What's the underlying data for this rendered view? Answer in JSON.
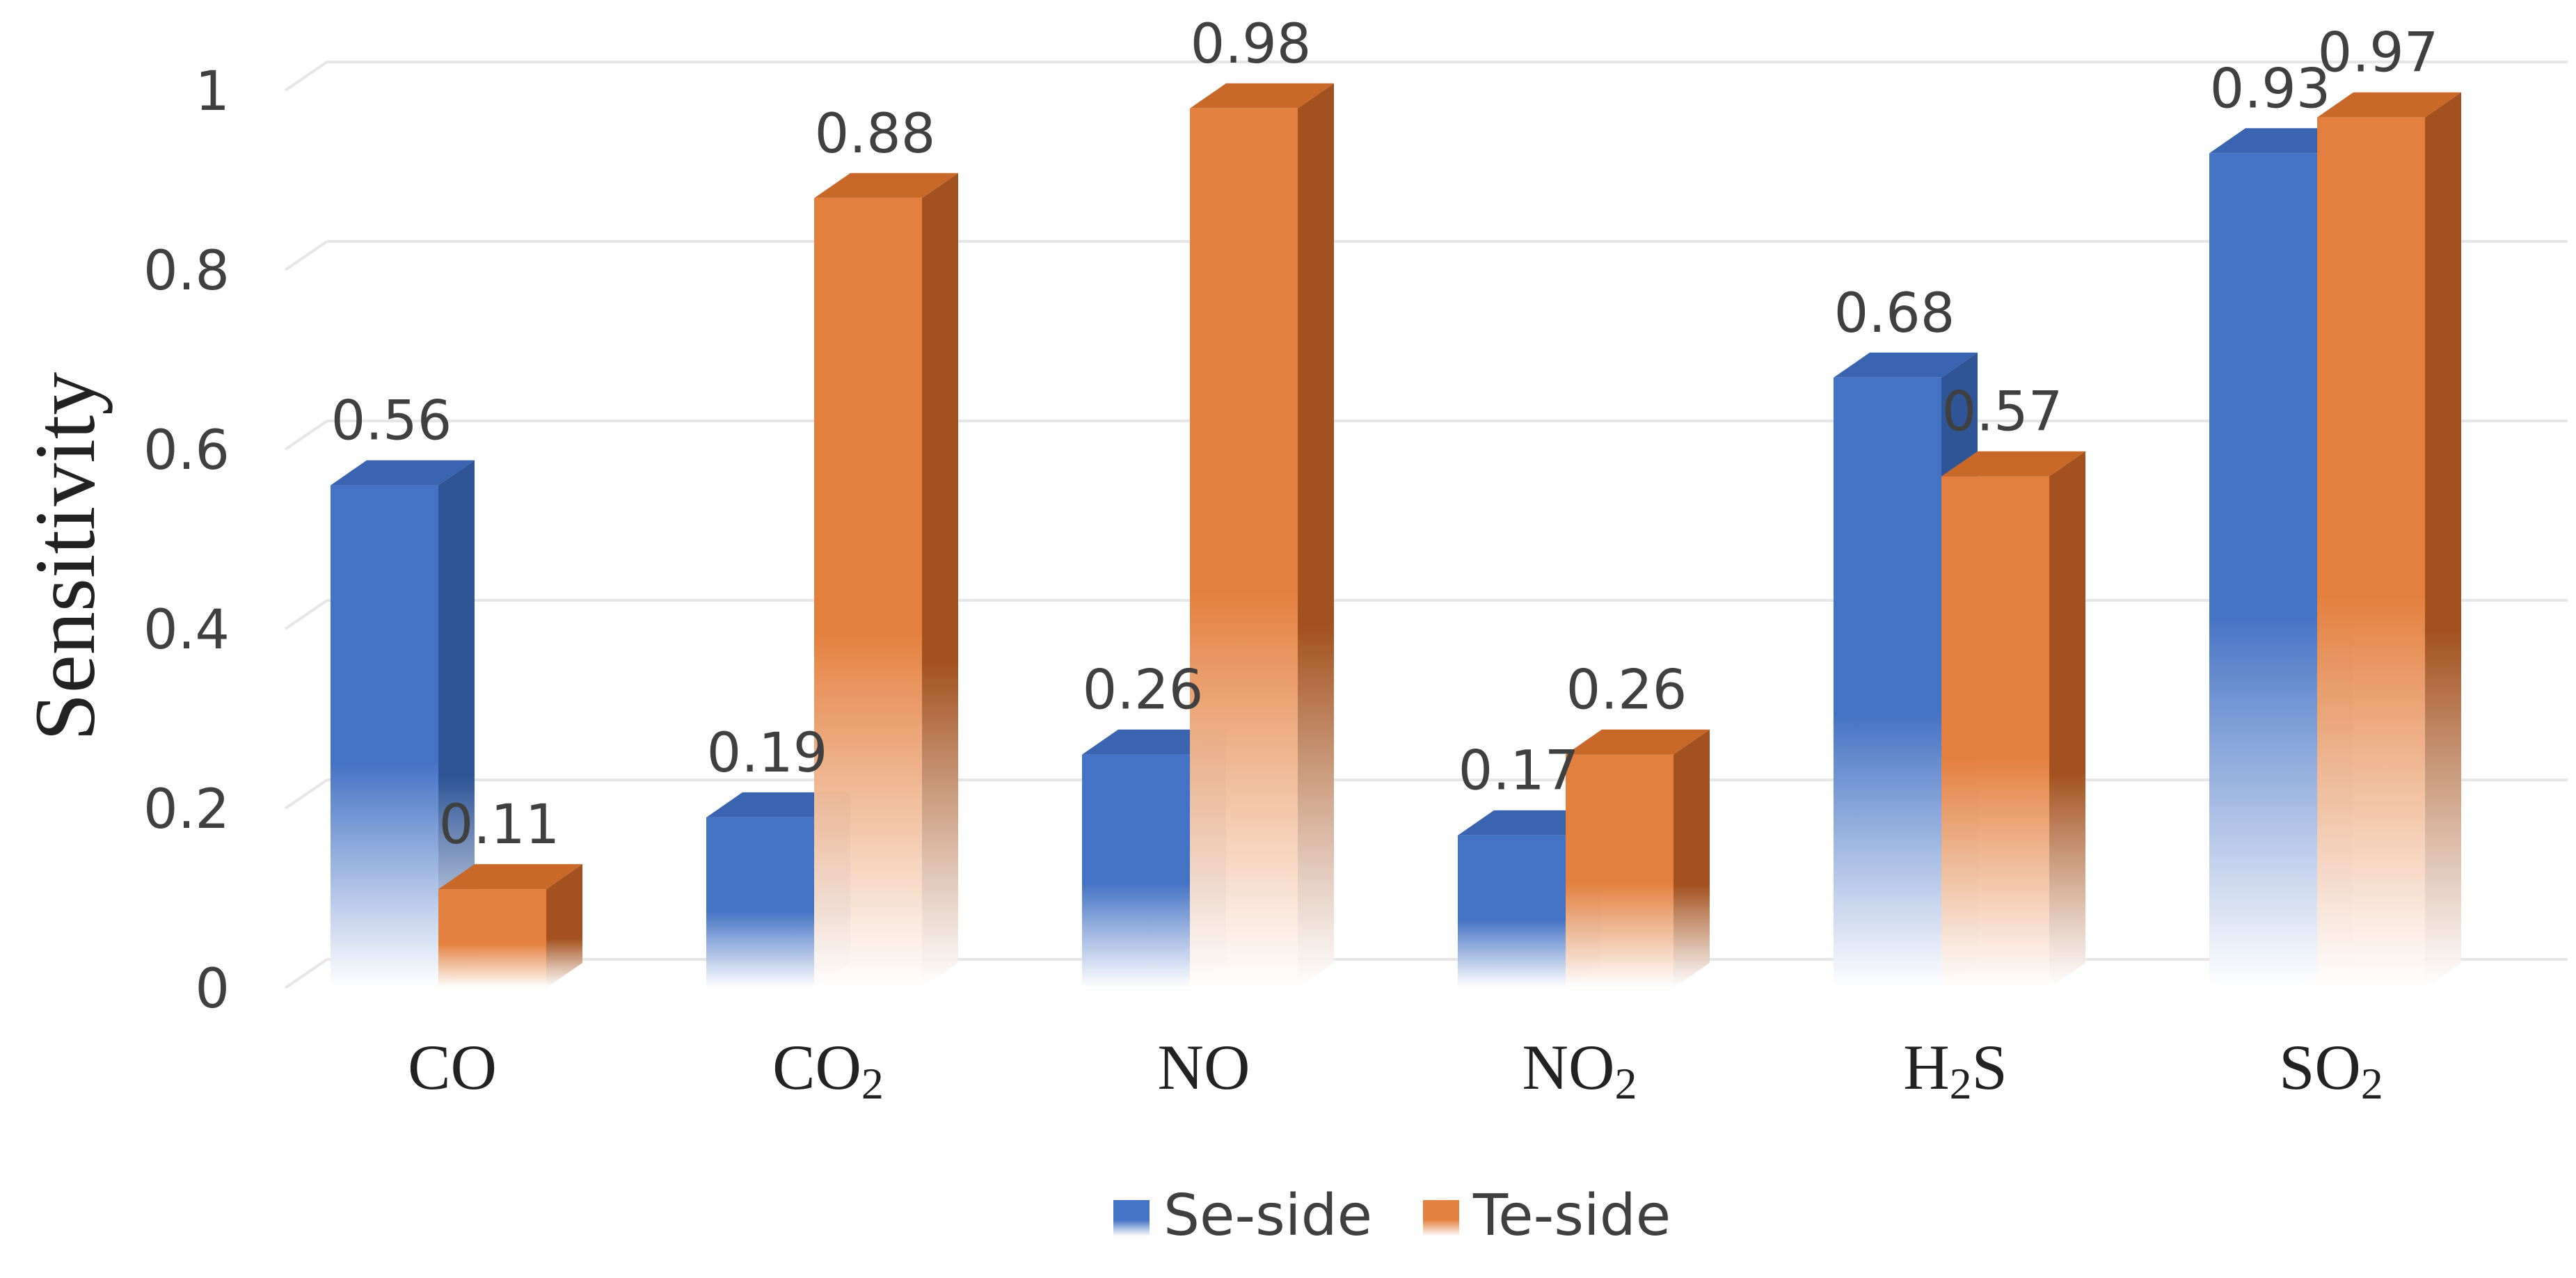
{
  "chart_data": {
    "type": "bar",
    "title": "",
    "xlabel": "",
    "ylabel": "Sensitivity",
    "ylim": [
      0,
      1
    ],
    "yticks": [
      0,
      0.2,
      0.4,
      0.6,
      0.8,
      1
    ],
    "ytick_labels": [
      "0",
      "0.2",
      "0.4",
      "0.6",
      "0.8",
      "1"
    ],
    "grid": true,
    "legend_position": "bottom-center",
    "categories": [
      {
        "base": "CO",
        "sub": ""
      },
      {
        "base": "CO",
        "sub": "2"
      },
      {
        "base": "NO",
        "sub": ""
      },
      {
        "base": "NO",
        "sub": "2"
      },
      {
        "base": "H",
        "sub": "2",
        "rest": "S"
      },
      {
        "base": "SO",
        "sub": "2"
      }
    ],
    "series": [
      {
        "name": "Se-side",
        "color": "#4472C4",
        "side_color": "#2F5596",
        "top_color": "#3B64B0",
        "values": [
          0.56,
          0.19,
          0.26,
          0.17,
          0.68,
          0.93
        ],
        "labels": [
          "0.56",
          "0.19",
          "0.26",
          "0.17",
          "0.68",
          "0.93"
        ]
      },
      {
        "name": "Te-side",
        "color": "#E3803F",
        "side_color": "#A3511E",
        "top_color": "#C8692A",
        "values": [
          0.11,
          0.88,
          0.98,
          0.26,
          0.57,
          0.97
        ],
        "labels": [
          "0.11",
          "0.88",
          "0.98",
          "0.26",
          "0.57",
          "0.97"
        ]
      }
    ]
  }
}
